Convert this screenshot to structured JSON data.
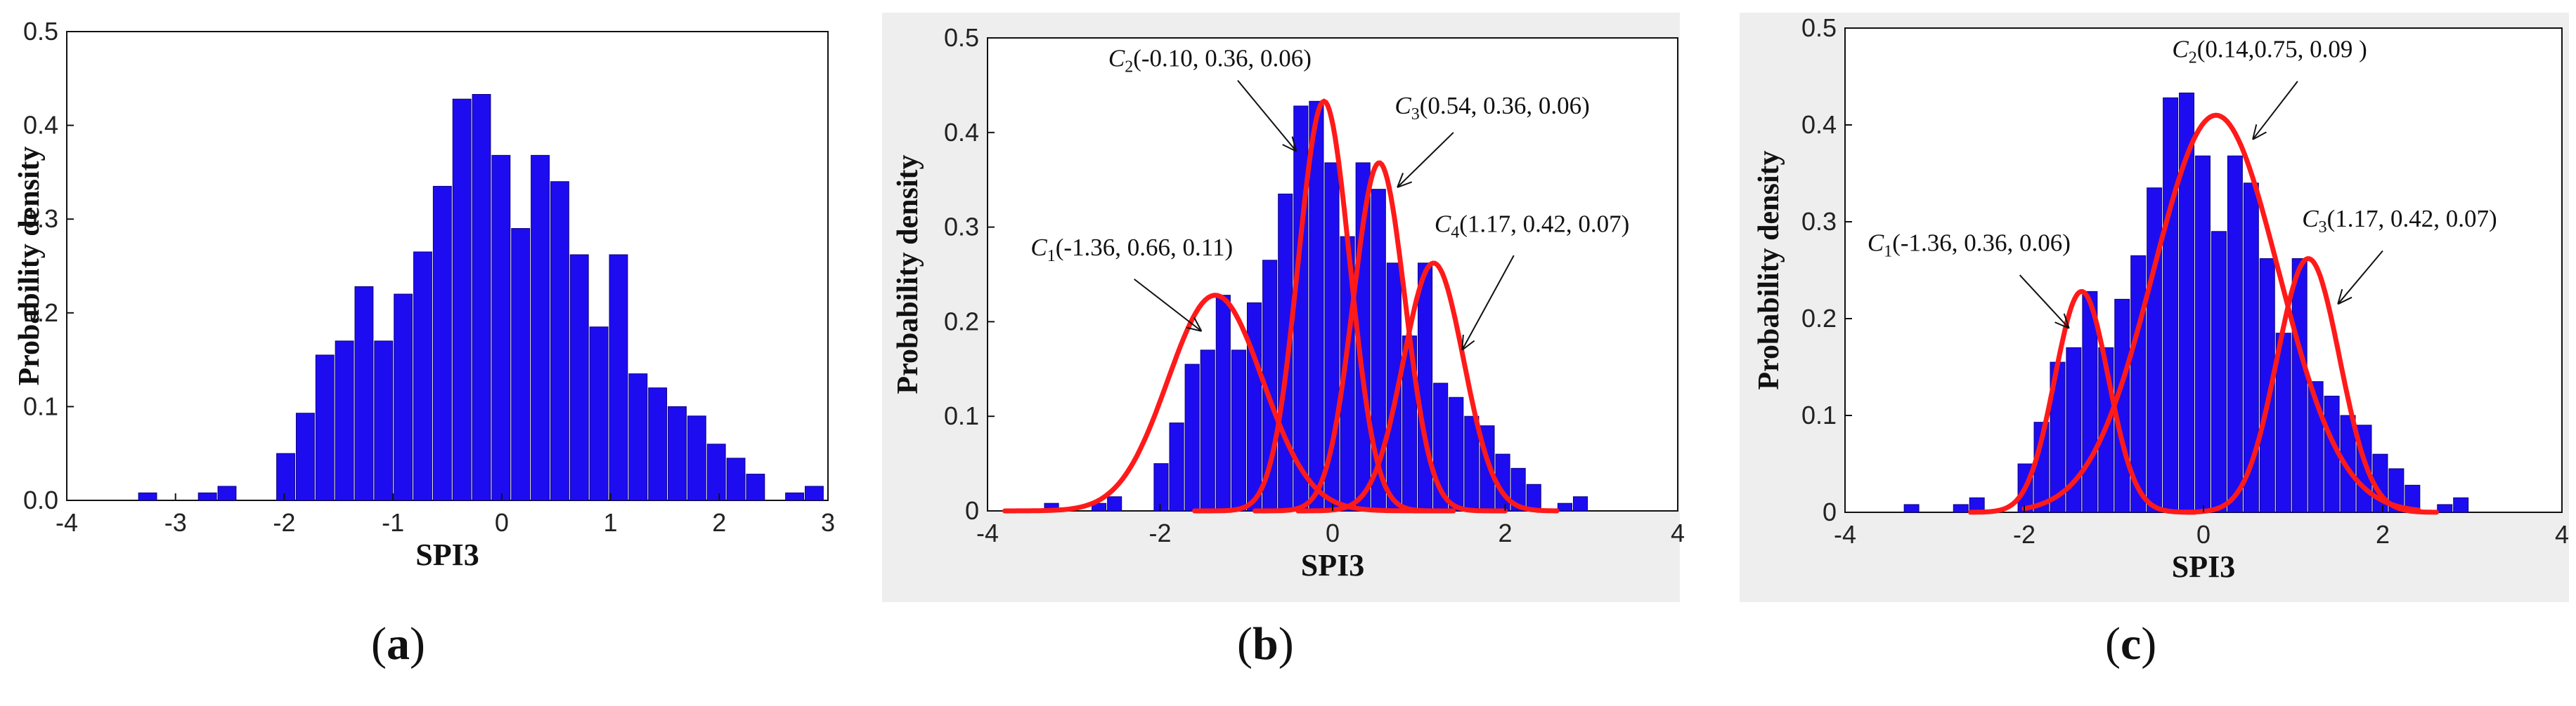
{
  "colors": {
    "bar": "#1e0cf0",
    "bar_edge": "#0a0080",
    "curve": "#ff1a1a",
    "axis": "#111111",
    "panel_bg": "#eeeeee"
  },
  "chart_data": [
    {
      "type": "bar",
      "panel": "a",
      "caption": "a",
      "xlabel": "SPI3",
      "ylabel": "Probability density",
      "xlim": [
        -4,
        3
      ],
      "ylim": [
        0,
        0.5
      ],
      "xticks": [
        "-4",
        "-3",
        "-2",
        "-1",
        "0",
        "1",
        "2",
        "3"
      ],
      "yticks": [
        "0.0",
        "0.1",
        "0.2",
        "0.3",
        "0.4",
        "0.5"
      ],
      "bin_width": 0.18,
      "bins": [
        {
          "x": -3.25,
          "y": 0.008
        },
        {
          "x": -2.7,
          "y": 0.008
        },
        {
          "x": -2.52,
          "y": 0.015
        },
        {
          "x": -1.98,
          "y": 0.05
        },
        {
          "x": -1.8,
          "y": 0.093
        },
        {
          "x": -1.62,
          "y": 0.155
        },
        {
          "x": -1.44,
          "y": 0.17
        },
        {
          "x": -1.26,
          "y": 0.228
        },
        {
          "x": -1.08,
          "y": 0.17
        },
        {
          "x": -0.9,
          "y": 0.22
        },
        {
          "x": -0.72,
          "y": 0.265
        },
        {
          "x": -0.54,
          "y": 0.335
        },
        {
          "x": -0.36,
          "y": 0.428
        },
        {
          "x": -0.18,
          "y": 0.433
        },
        {
          "x": 0.0,
          "y": 0.368
        },
        {
          "x": 0.18,
          "y": 0.29
        },
        {
          "x": 0.36,
          "y": 0.368
        },
        {
          "x": 0.54,
          "y": 0.34
        },
        {
          "x": 0.72,
          "y": 0.262
        },
        {
          "x": 0.9,
          "y": 0.185
        },
        {
          "x": 1.08,
          "y": 0.262
        },
        {
          "x": 1.26,
          "y": 0.135
        },
        {
          "x": 1.44,
          "y": 0.12
        },
        {
          "x": 1.62,
          "y": 0.1
        },
        {
          "x": 1.8,
          "y": 0.09
        },
        {
          "x": 1.98,
          "y": 0.06
        },
        {
          "x": 2.16,
          "y": 0.045
        },
        {
          "x": 2.34,
          "y": 0.028
        },
        {
          "x": 2.7,
          "y": 0.008
        },
        {
          "x": 2.88,
          "y": 0.015
        }
      ],
      "curves": [],
      "annotations": []
    },
    {
      "type": "bar",
      "panel": "b",
      "caption": "b",
      "xlabel": "SPI3",
      "ylabel": "Probability density",
      "xlim": [
        -4,
        4
      ],
      "ylim": [
        0,
        0.5
      ],
      "xticks": [
        "-4",
        "-2",
        "0",
        "2",
        "4"
      ],
      "yticks": [
        "0",
        "0.1",
        "0.2",
        "0.3",
        "0.4",
        "0.5"
      ],
      "bin_width": 0.18,
      "bins": [
        {
          "x": -3.25,
          "y": 0.008
        },
        {
          "x": -2.7,
          "y": 0.008
        },
        {
          "x": -2.52,
          "y": 0.015
        },
        {
          "x": -1.98,
          "y": 0.05
        },
        {
          "x": -1.8,
          "y": 0.093
        },
        {
          "x": -1.62,
          "y": 0.155
        },
        {
          "x": -1.44,
          "y": 0.17
        },
        {
          "x": -1.26,
          "y": 0.228
        },
        {
          "x": -1.08,
          "y": 0.17
        },
        {
          "x": -0.9,
          "y": 0.22
        },
        {
          "x": -0.72,
          "y": 0.265
        },
        {
          "x": -0.54,
          "y": 0.335
        },
        {
          "x": -0.36,
          "y": 0.428
        },
        {
          "x": -0.18,
          "y": 0.433
        },
        {
          "x": 0.0,
          "y": 0.368
        },
        {
          "x": 0.18,
          "y": 0.29
        },
        {
          "x": 0.36,
          "y": 0.368
        },
        {
          "x": 0.54,
          "y": 0.34
        },
        {
          "x": 0.72,
          "y": 0.262
        },
        {
          "x": 0.9,
          "y": 0.185
        },
        {
          "x": 1.08,
          "y": 0.262
        },
        {
          "x": 1.26,
          "y": 0.135
        },
        {
          "x": 1.44,
          "y": 0.12
        },
        {
          "x": 1.62,
          "y": 0.1
        },
        {
          "x": 1.8,
          "y": 0.09
        },
        {
          "x": 1.98,
          "y": 0.06
        },
        {
          "x": 2.16,
          "y": 0.045
        },
        {
          "x": 2.34,
          "y": 0.028
        },
        {
          "x": 2.7,
          "y": 0.008
        },
        {
          "x": 2.88,
          "y": 0.015
        }
      ],
      "curves": [
        {
          "name": "C1",
          "mu": -1.36,
          "sigma": 0.55,
          "peak": 0.228,
          "from": -3.8,
          "to": 1.2
        },
        {
          "name": "C2",
          "mu": -0.1,
          "sigma": 0.3,
          "peak": 0.433,
          "from": -1.6,
          "to": 1.4
        },
        {
          "name": "C3",
          "mu": 0.54,
          "sigma": 0.3,
          "peak": 0.368,
          "from": -0.9,
          "to": 2.0
        },
        {
          "name": "C4",
          "mu": 1.17,
          "sigma": 0.35,
          "peak": 0.262,
          "from": -0.4,
          "to": 2.6
        }
      ],
      "annotations": [
        {
          "sym": "C",
          "sub": "2",
          "text": "(-0.10, 0.36, 0.06)",
          "tx": -2.6,
          "ty": 0.47,
          "ax": -1.1,
          "ay": 0.455,
          "px": -0.42,
          "py": 0.38
        },
        {
          "sym": "C",
          "sub": "3",
          "text": "(0.54, 0.36, 0.06)",
          "tx": 0.72,
          "ty": 0.42,
          "ax": 1.4,
          "ay": 0.4,
          "px": 0.75,
          "py": 0.342
        },
        {
          "sym": "C",
          "sub": "4",
          "text": "(1.17, 0.42, 0.07)",
          "tx": 1.18,
          "ty": 0.295,
          "ax": 2.1,
          "ay": 0.27,
          "px": 1.5,
          "py": 0.17
        },
        {
          "sym": "C",
          "sub": "1",
          "text": "(-1.36, 0.66, 0.11)",
          "tx": -3.5,
          "ty": 0.27,
          "ax": -2.3,
          "ay": 0.245,
          "px": -1.52,
          "py": 0.19
        }
      ]
    },
    {
      "type": "bar",
      "panel": "c",
      "caption": "c",
      "xlabel": "SPI3",
      "ylabel": "Probability density",
      "xlim": [
        -4,
        4
      ],
      "ylim": [
        0,
        0.5
      ],
      "xticks": [
        "-4",
        "-2",
        "0",
        "2",
        "4"
      ],
      "yticks": [
        "0",
        "0.1",
        "0.2",
        "0.3",
        "0.4",
        "0.5"
      ],
      "bin_width": 0.18,
      "bins": [
        {
          "x": -3.25,
          "y": 0.008
        },
        {
          "x": -2.7,
          "y": 0.008
        },
        {
          "x": -2.52,
          "y": 0.015
        },
        {
          "x": -1.98,
          "y": 0.05
        },
        {
          "x": -1.8,
          "y": 0.093
        },
        {
          "x": -1.62,
          "y": 0.155
        },
        {
          "x": -1.44,
          "y": 0.17
        },
        {
          "x": -1.26,
          "y": 0.228
        },
        {
          "x": -1.08,
          "y": 0.17
        },
        {
          "x": -0.9,
          "y": 0.22
        },
        {
          "x": -0.72,
          "y": 0.265
        },
        {
          "x": -0.54,
          "y": 0.335
        },
        {
          "x": -0.36,
          "y": 0.428
        },
        {
          "x": -0.18,
          "y": 0.433
        },
        {
          "x": 0.0,
          "y": 0.368
        },
        {
          "x": 0.18,
          "y": 0.29
        },
        {
          "x": 0.36,
          "y": 0.368
        },
        {
          "x": 0.54,
          "y": 0.34
        },
        {
          "x": 0.72,
          "y": 0.262
        },
        {
          "x": 0.9,
          "y": 0.185
        },
        {
          "x": 1.08,
          "y": 0.262
        },
        {
          "x": 1.26,
          "y": 0.135
        },
        {
          "x": 1.44,
          "y": 0.12
        },
        {
          "x": 1.62,
          "y": 0.1
        },
        {
          "x": 1.8,
          "y": 0.09
        },
        {
          "x": 1.98,
          "y": 0.06
        },
        {
          "x": 2.16,
          "y": 0.045
        },
        {
          "x": 2.34,
          "y": 0.028
        },
        {
          "x": 2.7,
          "y": 0.008
        },
        {
          "x": 2.88,
          "y": 0.015
        }
      ],
      "curves": [
        {
          "name": "C1",
          "mu": -1.36,
          "sigma": 0.3,
          "peak": 0.228,
          "from": -2.6,
          "to": -0.1
        },
        {
          "name": "C2",
          "mu": 0.14,
          "sigma": 0.7,
          "peak": 0.41,
          "from": -2.0,
          "to": 2.4
        },
        {
          "name": "C3",
          "mu": 1.17,
          "sigma": 0.35,
          "peak": 0.262,
          "from": -0.2,
          "to": 2.6
        }
      ],
      "annotations": [
        {
          "sym": "C",
          "sub": "2",
          "text": "(0.14,0.75, 0.09 )",
          "tx": -0.35,
          "ty": 0.47,
          "ax": 1.05,
          "ay": 0.445,
          "px": 0.55,
          "py": 0.385
        },
        {
          "sym": "C",
          "sub": "3",
          "text": "(1.17, 0.42, 0.07)",
          "tx": 1.1,
          "ty": 0.295,
          "ax": 2.0,
          "ay": 0.27,
          "px": 1.5,
          "py": 0.215
        },
        {
          "sym": "C",
          "sub": "1",
          "text": "(-1.36, 0.36, 0.06)",
          "tx": -3.75,
          "ty": 0.27,
          "ax": -2.05,
          "ay": 0.245,
          "px": -1.5,
          "py": 0.19
        }
      ]
    }
  ]
}
